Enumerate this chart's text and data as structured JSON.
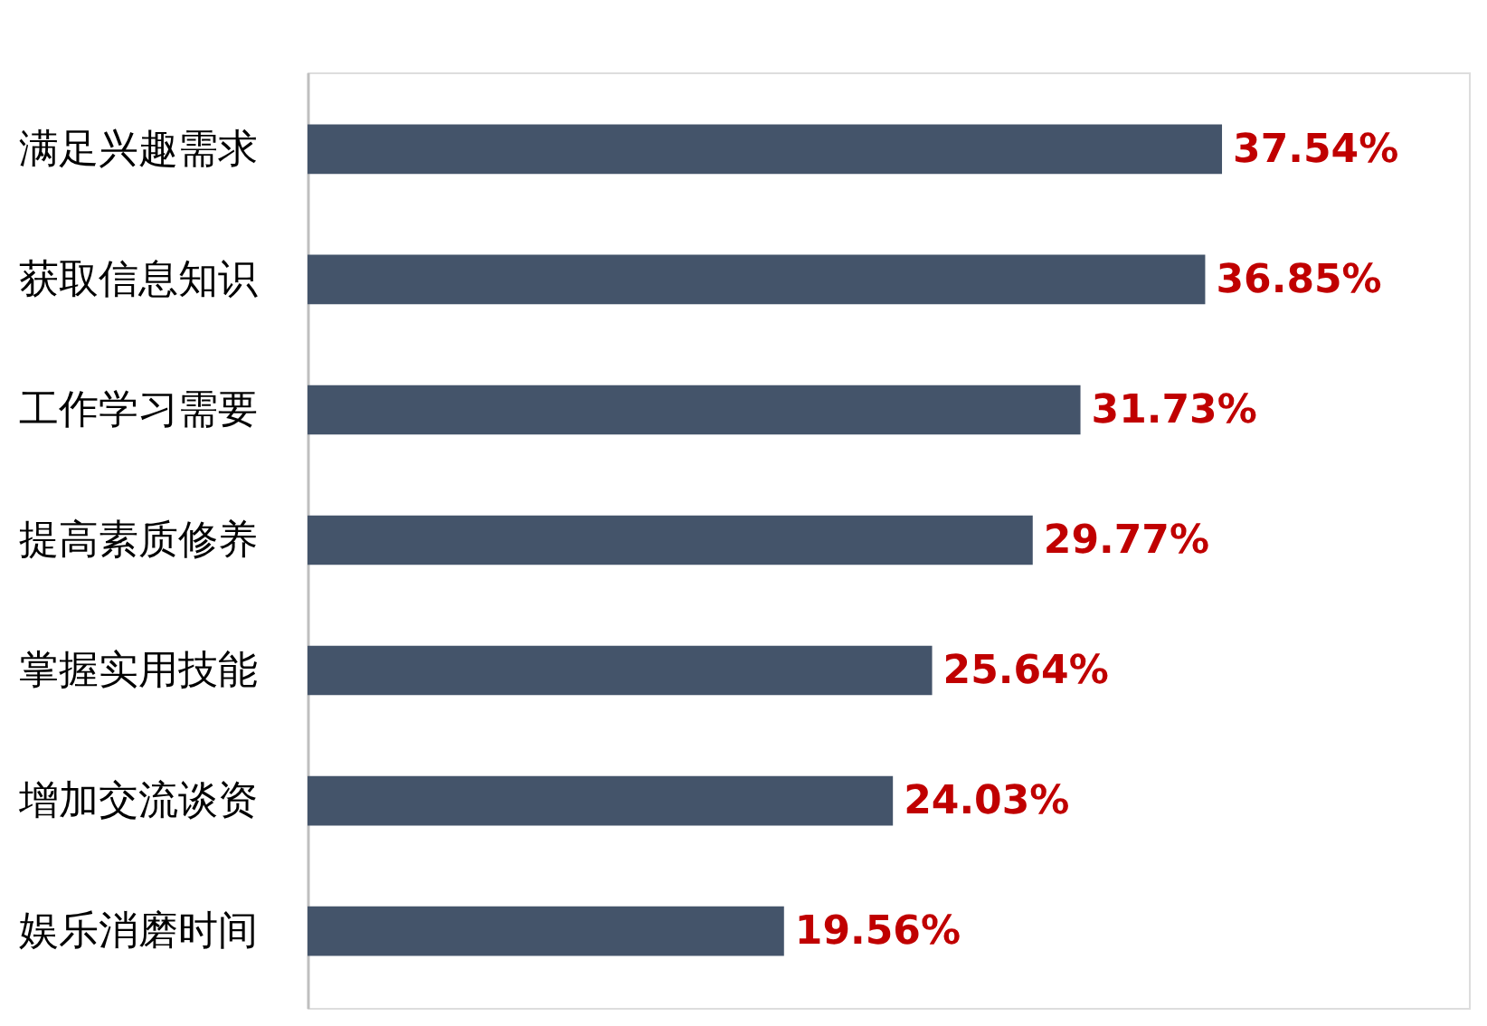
{
  "chart_data": {
    "type": "bar",
    "orientation": "horizontal",
    "categories": [
      "满足兴趣需求",
      "获取信息知识",
      "工作学习需要",
      "提高素质修养",
      "掌握实用技能",
      "增加交流谈资",
      "娱乐消磨时间"
    ],
    "values": [
      37.54,
      36.85,
      31.73,
      29.77,
      25.64,
      24.03,
      19.56
    ],
    "value_labels": [
      "37.54%",
      "36.85%",
      "31.73%",
      "29.77%",
      "25.64%",
      "24.03%",
      "19.56%"
    ],
    "color": "#44546a"
  }
}
